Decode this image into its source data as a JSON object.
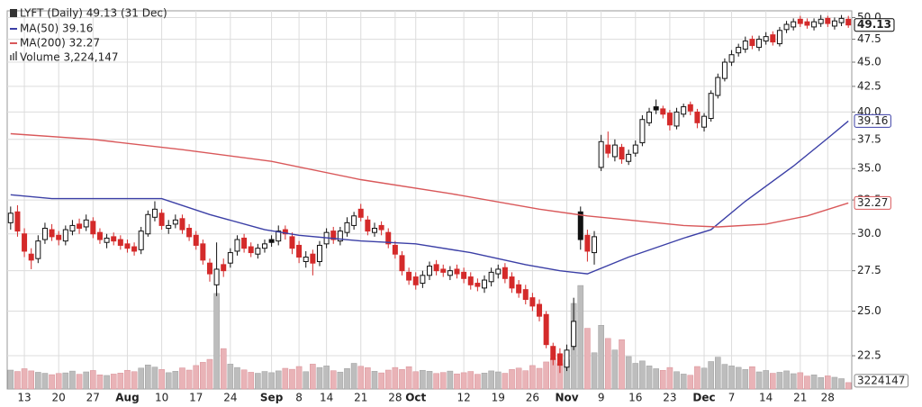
{
  "chart_data": {
    "type": "candlestick",
    "title": "LYFT (Daily) 49.13 (31 Dec)",
    "volume_label": "Volume 3,224,147",
    "categories": [
      null,
      null,
      "13",
      null,
      null,
      null,
      null,
      "20",
      null,
      null,
      null,
      null,
      "27",
      null,
      null,
      null,
      null,
      "Aug",
      null,
      null,
      null,
      null,
      "10",
      null,
      null,
      null,
      null,
      "17",
      null,
      null,
      null,
      null,
      "24",
      null,
      null,
      null,
      null,
      null,
      "Sep",
      null,
      null,
      null,
      "8",
      null,
      null,
      null,
      "14",
      null,
      null,
      null,
      null,
      "21",
      null,
      null,
      null,
      null,
      "28",
      null,
      null,
      "Oct",
      null,
      null,
      null,
      null,
      null,
      null,
      "12",
      null,
      null,
      null,
      null,
      "19",
      null,
      null,
      null,
      null,
      "26",
      null,
      null,
      null,
      null,
      "Nov",
      null,
      null,
      null,
      null,
      "9",
      null,
      null,
      null,
      null,
      "16",
      null,
      null,
      null,
      null,
      "23",
      null,
      null,
      null,
      null,
      "Dec",
      null,
      null,
      null,
      "7",
      null,
      null,
      null,
      null,
      "14",
      null,
      null,
      null,
      null,
      "21",
      null,
      null,
      null,
      "28",
      null,
      null,
      null
    ],
    "open": [
      30.8,
      31.6,
      30.0,
      28.6,
      28.3,
      29.6,
      30.3,
      29.9,
      29.5,
      30.2,
      30.7,
      30.5,
      30.9,
      30.1,
      29.4,
      29.8,
      29.6,
      29.3,
      29.1,
      28.9,
      30.0,
      31.2,
      31.5,
      30.4,
      30.7,
      31.1,
      30.4,
      29.9,
      29.3,
      28.0,
      26.6,
      27.9,
      28.0,
      28.8,
      29.7,
      29.1,
      28.6,
      29.0,
      29.6,
      29.5,
      30.3,
      29.8,
      29.2,
      28.1,
      28.6,
      28.1,
      29.3,
      30.2,
      29.5,
      30.1,
      30.6,
      31.8,
      31.0,
      30.1,
      30.6,
      30.1,
      29.2,
      28.5,
      27.4,
      27.1,
      26.7,
      27.2,
      27.9,
      27.6,
      27.2,
      27.6,
      27.4,
      27.1,
      26.7,
      26.4,
      26.8,
      27.3,
      27.7,
      27.1,
      26.6,
      26.3,
      25.8,
      25.4,
      24.8,
      23.0,
      22.6,
      21.9,
      23.0,
      31.6,
      29.9,
      28.7,
      35.1,
      37.0,
      36.0,
      36.8,
      35.6,
      36.3,
      37.2,
      39.0,
      40.5,
      40.3,
      39.9,
      38.7,
      39.8,
      40.7,
      40.0,
      38.6,
      39.4,
      41.6,
      43.3,
      45.0,
      46.0,
      46.4,
      47.5,
      46.6,
      47.3,
      48.0,
      47.0,
      48.6,
      48.9,
      49.8,
      49.5,
      48.9,
      49.3,
      49.9,
      49.0,
      49.4,
      49.8
    ],
    "high": [
      32.0,
      32.1,
      30.4,
      29.0,
      29.9,
      30.8,
      30.7,
      30.2,
      30.6,
      31.0,
      31.1,
      31.4,
      31.2,
      30.4,
      30.0,
      30.1,
      29.9,
      29.6,
      29.4,
      30.5,
      31.7,
      32.4,
      31.8,
      31.0,
      31.4,
      31.4,
      30.7,
      30.2,
      29.6,
      28.3,
      29.4,
      28.3,
      29.0,
      29.9,
      30.0,
      29.4,
      29.3,
      29.6,
      29.9,
      30.6,
      30.6,
      30.1,
      29.5,
      28.8,
      28.9,
      29.5,
      30.4,
      30.5,
      30.5,
      31.2,
      31.6,
      32.2,
      31.3,
      30.8,
      30.9,
      30.4,
      29.5,
      28.8,
      27.7,
      27.4,
      27.5,
      28.1,
      28.2,
      27.9,
      27.8,
      27.9,
      27.7,
      27.4,
      27.0,
      27.2,
      27.7,
      27.9,
      28.0,
      27.4,
      26.9,
      26.6,
      26.1,
      25.7,
      25.0,
      23.2,
      22.9,
      23.1,
      25.8,
      32.0,
      30.3,
      30.2,
      37.9,
      38.2,
      37.5,
      37.1,
      36.6,
      37.4,
      39.7,
      40.4,
      41.2,
      40.6,
      40.2,
      40.4,
      40.8,
      41.0,
      40.3,
      39.9,
      42.1,
      43.8,
      45.4,
      46.3,
      47.0,
      47.8,
      47.9,
      47.9,
      48.3,
      48.4,
      48.9,
      49.6,
      49.9,
      50.2,
      49.9,
      49.9,
      50.3,
      50.2,
      50.0,
      50.3,
      50.2
    ],
    "low": [
      30.3,
      29.8,
      28.4,
      27.6,
      28.0,
      29.3,
      29.5,
      29.2,
      29.2,
      29.9,
      30.0,
      30.2,
      29.7,
      29.3,
      29.0,
      29.2,
      28.9,
      28.7,
      28.5,
      28.6,
      29.8,
      30.9,
      30.3,
      30.0,
      30.4,
      30.0,
      29.5,
      28.9,
      27.9,
      26.8,
      25.9,
      27.1,
      27.7,
      28.5,
      28.7,
      28.4,
      28.3,
      28.7,
      29.1,
      29.2,
      29.6,
      28.6,
      28.0,
      27.7,
      27.2,
      27.8,
      29.0,
      29.3,
      29.2,
      29.8,
      30.3,
      30.9,
      29.9,
      29.8,
      29.9,
      29.0,
      28.3,
      27.2,
      26.6,
      26.3,
      26.4,
      26.9,
      27.2,
      27.1,
      26.9,
      27.0,
      26.7,
      26.3,
      26.2,
      26.1,
      26.5,
      27.0,
      26.7,
      26.1,
      25.8,
      25.4,
      25.0,
      24.4,
      22.9,
      22.0,
      21.6,
      21.7,
      22.8,
      28.9,
      28.1,
      27.9,
      34.8,
      35.9,
      35.6,
      35.4,
      35.3,
      36.0,
      36.9,
      38.7,
      39.8,
      39.4,
      38.3,
      38.4,
      39.5,
      39.7,
      38.5,
      38.2,
      39.1,
      41.3,
      43.0,
      44.6,
      45.6,
      46.0,
      46.4,
      46.2,
      46.9,
      46.8,
      46.7,
      48.2,
      48.5,
      48.9,
      48.7,
      48.5,
      48.9,
      48.9,
      48.6,
      49.0,
      48.8
    ],
    "close": [
      31.5,
      30.2,
      28.8,
      28.2,
      29.5,
      30.4,
      29.8,
      29.6,
      30.3,
      30.6,
      30.4,
      31.0,
      30.0,
      29.6,
      29.7,
      29.5,
      29.2,
      29.0,
      28.8,
      30.2,
      31.4,
      31.8,
      30.6,
      30.6,
      31.0,
      30.3,
      29.8,
      29.2,
      28.2,
      27.3,
      27.6,
      27.5,
      28.7,
      29.6,
      29.0,
      28.7,
      29.0,
      29.3,
      29.4,
      30.2,
      30.0,
      29.0,
      28.4,
      28.4,
      28.0,
      29.2,
      30.1,
      29.6,
      30.2,
      30.8,
      31.3,
      31.2,
      30.2,
      30.4,
      30.3,
      29.3,
      28.6,
      27.5,
      26.9,
      26.6,
      27.2,
      27.8,
      27.5,
      27.4,
      27.5,
      27.3,
      27.0,
      26.6,
      26.5,
      26.9,
      27.4,
      27.6,
      27.0,
      26.4,
      26.1,
      25.7,
      25.3,
      24.7,
      23.1,
      22.3,
      22.0,
      22.8,
      24.4,
      29.6,
      28.8,
      29.8,
      37.3,
      36.3,
      37.0,
      35.8,
      36.2,
      37.0,
      39.3,
      40.0,
      40.2,
      39.8,
      38.8,
      40.0,
      40.5,
      40.1,
      39.0,
      39.6,
      41.8,
      43.4,
      45.0,
      45.8,
      46.6,
      47.3,
      46.8,
      47.5,
      47.8,
      47.2,
      48.5,
      49.2,
      49.5,
      49.3,
      49.1,
      49.5,
      49.8,
      49.3,
      49.6,
      49.9,
      49.13
    ],
    "volume": [
      9500000,
      8800000,
      10200000,
      9100000,
      8400000,
      7900000,
      7200000,
      7800000,
      8100000,
      9000000,
      7400000,
      8600000,
      9300000,
      7100000,
      6800000,
      7500000,
      8000000,
      9400000,
      8700000,
      10500000,
      12100000,
      11000000,
      9800000,
      8200000,
      8900000,
      10600000,
      9500000,
      11800000,
      13400000,
      14900000,
      48000000,
      20300000,
      12500000,
      10800000,
      9600000,
      8400000,
      7900000,
      8800000,
      8200000,
      9100000,
      10400000,
      9900000,
      11300000,
      8700000,
      12500000,
      10800000,
      11600000,
      9200000,
      8500000,
      10300000,
      12900000,
      11400000,
      10700000,
      8900000,
      8100000,
      9500000,
      10800000,
      9800000,
      11200000,
      8700000,
      9400000,
      8900000,
      7800000,
      8300000,
      9000000,
      7600000,
      8200000,
      8800000,
      7400000,
      8000000,
      9100000,
      8600000,
      7900000,
      9800000,
      10500000,
      9200000,
      11800000,
      10400000,
      13600000,
      15200000,
      12800000,
      14600000,
      43000000,
      52000000,
      30500000,
      18200000,
      32000000,
      25400000,
      19600000,
      24800000,
      16300000,
      12900000,
      14100000,
      11600000,
      10200000,
      9400000,
      10800000,
      8700000,
      7500000,
      6900000,
      11300000,
      10500000,
      13800000,
      16000000,
      12400000,
      11600000,
      10900000,
      9800000,
      11200000,
      8600000,
      9300000,
      7900000,
      8400000,
      9100000,
      7700000,
      8200000,
      6500000,
      7100000,
      5800000,
      6600000,
      5900000,
      5200000,
      3224147
    ],
    "series": [
      {
        "name": "MA(50) 39.16",
        "color": "#3b3fa6",
        "x": [
          0,
          6,
          22,
          29,
          37,
          42,
          51,
          59,
          67,
          75,
          80,
          84,
          90,
          98,
          102,
          107,
          114,
          119,
          122
        ],
        "values": [
          32.9,
          32.6,
          32.6,
          31.4,
          30.3,
          29.9,
          29.5,
          29.3,
          28.7,
          27.9,
          27.5,
          27.3,
          28.4,
          29.7,
          30.3,
          32.4,
          35.2,
          37.6,
          39.16
        ]
      },
      {
        "name": "MA(200) 32.27",
        "color": "#d9585a",
        "x": [
          0,
          12,
          25,
          38,
          51,
          64,
          77,
          84,
          90,
          98,
          103,
          110,
          116,
          122
        ],
        "values": [
          38.0,
          37.5,
          36.6,
          35.6,
          34.1,
          33.0,
          31.8,
          31.3,
          31.0,
          30.6,
          30.5,
          30.7,
          31.3,
          32.27
        ]
      }
    ],
    "ylim": [
      20.8,
      50.8
    ],
    "log": true,
    "yticks": [
      22.5,
      {
        "value": 25,
        "label": "25.0"
      },
      27.5,
      {
        "value": 30,
        "label": "30.0"
      },
      32.5,
      {
        "value": 35,
        "label": "35.0"
      },
      37.5,
      {
        "value": 40,
        "label": "40.0"
      },
      42.5,
      {
        "value": 45,
        "label": "45.0"
      },
      47.5,
      {
        "value": 50,
        "label": "50.0"
      }
    ],
    "y2lim": [
      0,
      190000000
    ],
    "grid": true,
    "colors": {
      "up": "#111111",
      "down": "#d42a2a",
      "volume_up": "#bdbdbd",
      "volume_down": "#e9b3b7"
    }
  }
}
